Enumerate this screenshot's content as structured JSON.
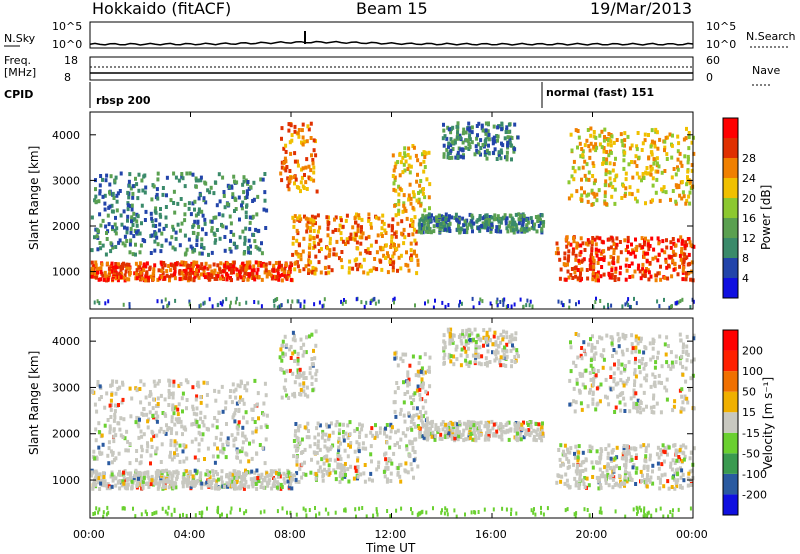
{
  "header": {
    "left": "Hokkaido (fitACF)",
    "center": "Beam 15",
    "right": "19/Mar/2013"
  },
  "top_panel": {
    "left_label": "N.Sky",
    "right_label": "N.Search",
    "left_ticks": [
      "10^5",
      "10^0"
    ],
    "right_ticks": [
      "10^5",
      "10^0"
    ]
  },
  "freq_panel": {
    "left_label_1": "Freq.",
    "left_label_2": "[MHz]",
    "right_label": "Nave",
    "left_ticks": [
      "18",
      "8"
    ],
    "right_ticks": [
      "60",
      "0"
    ]
  },
  "cpid_panel": {
    "label": "CPID",
    "mode1": "rbsp 200",
    "mode2": "normal (fast) 151",
    "mode2_start_hour": 18
  },
  "x_axis": {
    "label": "Time UT",
    "ticks": [
      "00:00",
      "04:00",
      "08:00",
      "12:00",
      "16:00",
      "20:00",
      "00:00"
    ],
    "range_hours": [
      0,
      24
    ]
  },
  "power_panel": {
    "ylabel": "Slant Range [km]",
    "yticks": [
      "1000",
      "2000",
      "3000",
      "4000"
    ],
    "colorbar_label": "Power [dB]",
    "colorbar_ticks": [
      "4",
      "8",
      "12",
      "16",
      "20",
      "24",
      "28"
    ],
    "colors": [
      "#1010e0",
      "#2244aa",
      "#3a8a6a",
      "#5aa050",
      "#8cc830",
      "#f0c000",
      "#f08000",
      "#e03000",
      "#ff0000"
    ]
  },
  "velocity_panel": {
    "ylabel": "Slant Range [km]",
    "yticks": [
      "1000",
      "2000",
      "3000",
      "4000"
    ],
    "colorbar_label": "Velocity [m s⁻¹]",
    "colorbar_ticks": [
      "200",
      "100",
      "50",
      "15",
      "-15",
      "-50",
      "-100",
      "-200"
    ],
    "colors": [
      "#1010e0",
      "#2a5aa0",
      "#3a9a50",
      "#6ad030",
      "#c8c8c0",
      "#f0b000",
      "#f07000",
      "#ff2000",
      "#ff0000"
    ]
  },
  "chart_data": {
    "type": "heatmap",
    "x_range_hours": [
      0,
      24
    ],
    "y_range_km": [
      180,
      4500
    ],
    "power_bands": [
      {
        "t0": 0,
        "t1": 8,
        "r0": 850,
        "r1": 1250,
        "level": 8
      },
      {
        "t0": 8,
        "t1": 13,
        "r0": 1000,
        "r1": 2300,
        "level": 7
      },
      {
        "t0": 12,
        "t1": 13.5,
        "r0": 2300,
        "r1": 3800,
        "level": 6
      },
      {
        "t0": 13,
        "t1": 18,
        "r0": 1900,
        "r1": 2300,
        "level": 3
      },
      {
        "t0": 14,
        "t1": 17,
        "r0": 3500,
        "r1": 4300,
        "level": 3
      },
      {
        "t0": 0,
        "t1": 7,
        "r0": 1400,
        "r1": 3200,
        "level": 3
      },
      {
        "t0": 7.5,
        "t1": 9,
        "r0": 2800,
        "r1": 4300,
        "level": 7
      },
      {
        "t0": 18.5,
        "t1": 24,
        "r0": 850,
        "r1": 1800,
        "level": 8
      },
      {
        "t0": 19,
        "t1": 24,
        "r0": 2500,
        "r1": 4200,
        "level": 6
      }
    ]
  }
}
